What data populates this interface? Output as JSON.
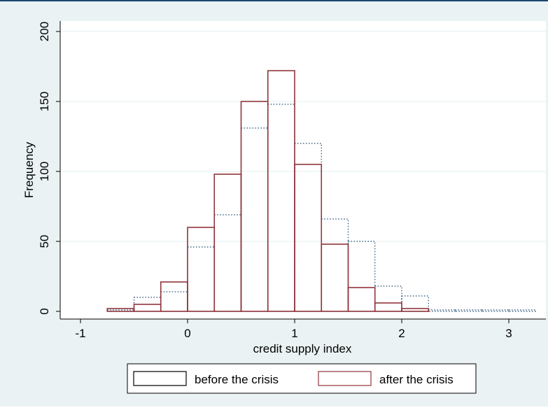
{
  "chart_data": {
    "type": "bar",
    "xlabel": "credit supply index",
    "ylabel": "Frequency",
    "xlim": [
      -1.1,
      3.25
    ],
    "ylim": [
      0,
      200
    ],
    "x_ticks": [
      "-1",
      "0",
      "1",
      "2",
      "3"
    ],
    "y_ticks": [
      "0",
      "50",
      "100",
      "150",
      "200"
    ],
    "grid": true,
    "legend_position": "bottom",
    "bin_edges": [
      -1.25,
      -1.0,
      -0.75,
      -0.5,
      -0.25,
      0.0,
      0.25,
      0.5,
      0.75,
      1.0,
      1.25,
      1.5,
      1.75,
      2.0,
      2.25,
      2.5,
      2.75,
      3.0,
      3.25
    ],
    "series": [
      {
        "name": "before the crisis",
        "style": "dotted",
        "color": "#1a476f",
        "values": [
          0,
          0,
          1,
          10,
          14,
          46,
          69,
          131,
          148,
          120,
          66,
          50,
          18,
          11,
          1,
          1,
          1,
          1
        ]
      },
      {
        "name": "after the crisis",
        "style": "solid",
        "color": "#90353b",
        "values": [
          null,
          null,
          2,
          5,
          21,
          60,
          98,
          150,
          172,
          105,
          48,
          17,
          6,
          2,
          null,
          null,
          null,
          null
        ]
      }
    ]
  },
  "legend": {
    "before_label": "before the crisis",
    "after_label": "after the crisis"
  },
  "colors": {
    "background": "#eaf2f3",
    "plot_area": "#ffffff",
    "gridline": "#eaf2f3",
    "before_outline": "#000000",
    "after_outline": "#90353b",
    "dotted_outline": "#1a476f"
  }
}
